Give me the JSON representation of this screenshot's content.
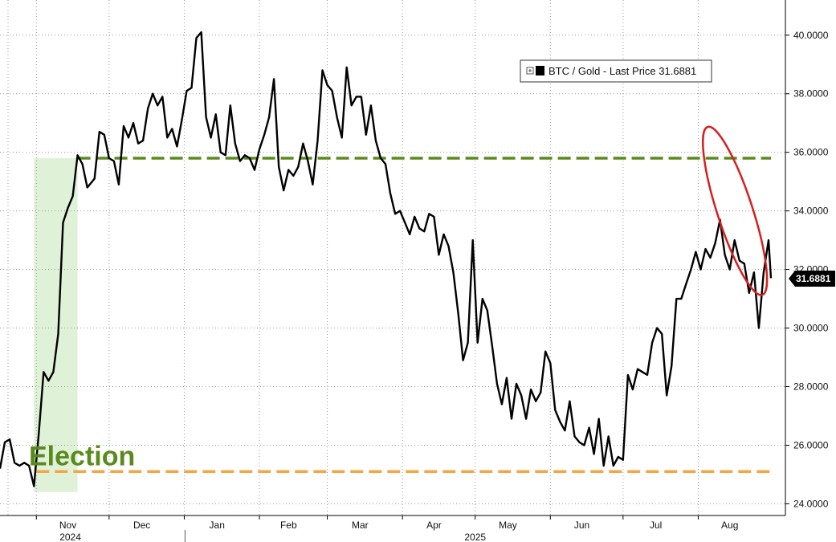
{
  "chart_data": {
    "type": "line",
    "title": "",
    "xlabel": "",
    "ylabel": "",
    "ylim": [
      23.6,
      41.2
    ],
    "y_axis_position": "right",
    "y_ticks": [
      "24.0000",
      "26.0000",
      "28.0000",
      "30.0000",
      "32.0000",
      "34.0000",
      "36.0000",
      "38.0000",
      "40.0000"
    ],
    "x_months": [
      {
        "label": "Nov",
        "date": "2024-11-01"
      },
      {
        "label": "Dec",
        "date": "2024-12-01"
      },
      {
        "label": "Jan",
        "date": "2025-01-01"
      },
      {
        "label": "Feb",
        "date": "2025-02-01"
      },
      {
        "label": "Mar",
        "date": "2025-03-01"
      },
      {
        "label": "Apr",
        "date": "2025-04-01"
      },
      {
        "label": "May",
        "date": "2025-05-01"
      },
      {
        "label": "Jun",
        "date": "2025-06-01"
      },
      {
        "label": "Jul",
        "date": "2025-07-01"
      },
      {
        "label": "Aug",
        "date": "2025-08-01"
      }
    ],
    "x_years": [
      {
        "label": "2024",
        "date": "2024-11-15"
      },
      {
        "label": "2025",
        "date": "2025-05-01"
      }
    ],
    "x_start": "2024-10-17",
    "x_end": "2025-08-31",
    "grid": true,
    "legend": {
      "position": "top-right",
      "text": "BTC / Gold - Last Price 31.6881"
    },
    "series": [
      {
        "name": "BTC / Gold",
        "color": "#000000",
        "last_value": "31.6881",
        "points": [
          [
            "2024-10-17",
            25.2
          ],
          [
            "2024-10-19",
            26.1
          ],
          [
            "2024-10-21",
            26.2
          ],
          [
            "2024-10-23",
            25.4
          ],
          [
            "2024-10-25",
            25.3
          ],
          [
            "2024-10-27",
            25.4
          ],
          [
            "2024-10-29",
            25.3
          ],
          [
            "2024-10-31",
            24.6
          ],
          [
            "2024-11-02",
            26.4
          ],
          [
            "2024-11-04",
            28.5
          ],
          [
            "2024-11-06",
            28.2
          ],
          [
            "2024-11-08",
            28.5
          ],
          [
            "2024-11-10",
            29.8
          ],
          [
            "2024-11-12",
            33.6
          ],
          [
            "2024-11-14",
            34.1
          ],
          [
            "2024-11-16",
            34.5
          ],
          [
            "2024-11-18",
            35.9
          ],
          [
            "2024-11-20",
            35.6
          ],
          [
            "2024-11-22",
            34.8
          ],
          [
            "2024-11-25",
            35.1
          ],
          [
            "2024-11-27",
            36.7
          ],
          [
            "2024-11-29",
            36.6
          ],
          [
            "2024-12-01",
            35.8
          ],
          [
            "2024-12-03",
            35.7
          ],
          [
            "2024-12-05",
            34.9
          ],
          [
            "2024-12-07",
            36.9
          ],
          [
            "2024-12-09",
            36.5
          ],
          [
            "2024-12-11",
            37.0
          ],
          [
            "2024-12-13",
            36.3
          ],
          [
            "2024-12-15",
            36.4
          ],
          [
            "2024-12-17",
            37.5
          ],
          [
            "2024-12-19",
            38.0
          ],
          [
            "2024-12-21",
            37.6
          ],
          [
            "2024-12-23",
            37.9
          ],
          [
            "2024-12-25",
            36.5
          ],
          [
            "2024-12-27",
            36.8
          ],
          [
            "2024-12-29",
            36.2
          ],
          [
            "2024-12-31",
            37.1
          ],
          [
            "2025-01-02",
            38.1
          ],
          [
            "2025-01-04",
            38.2
          ],
          [
            "2025-01-06",
            39.9
          ],
          [
            "2025-01-08",
            40.1
          ],
          [
            "2025-01-10",
            37.2
          ],
          [
            "2025-01-12",
            36.5
          ],
          [
            "2025-01-14",
            37.3
          ],
          [
            "2025-01-16",
            36.0
          ],
          [
            "2025-01-18",
            35.9
          ],
          [
            "2025-01-20",
            37.6
          ],
          [
            "2025-01-22",
            36.3
          ],
          [
            "2025-01-24",
            35.7
          ],
          [
            "2025-01-26",
            35.9
          ],
          [
            "2025-01-28",
            35.8
          ],
          [
            "2025-01-30",
            35.4
          ],
          [
            "2025-02-01",
            36.1
          ],
          [
            "2025-02-03",
            36.6
          ],
          [
            "2025-02-05",
            37.2
          ],
          [
            "2025-02-07",
            38.5
          ],
          [
            "2025-02-09",
            35.5
          ],
          [
            "2025-02-11",
            34.7
          ],
          [
            "2025-02-13",
            35.4
          ],
          [
            "2025-02-15",
            35.2
          ],
          [
            "2025-02-17",
            35.5
          ],
          [
            "2025-02-19",
            36.3
          ],
          [
            "2025-02-21",
            35.7
          ],
          [
            "2025-02-23",
            34.9
          ],
          [
            "2025-02-25",
            36.4
          ],
          [
            "2025-02-27",
            38.8
          ],
          [
            "2025-03-01",
            38.3
          ],
          [
            "2025-03-03",
            38.1
          ],
          [
            "2025-03-05",
            37.2
          ],
          [
            "2025-03-07",
            36.5
          ],
          [
            "2025-03-09",
            38.9
          ],
          [
            "2025-03-11",
            37.6
          ],
          [
            "2025-03-13",
            37.9
          ],
          [
            "2025-03-15",
            37.9
          ],
          [
            "2025-03-17",
            36.6
          ],
          [
            "2025-03-19",
            37.6
          ],
          [
            "2025-03-21",
            36.4
          ],
          [
            "2025-03-23",
            35.8
          ],
          [
            "2025-03-25",
            35.6
          ],
          [
            "2025-03-27",
            34.6
          ],
          [
            "2025-03-29",
            33.9
          ],
          [
            "2025-03-31",
            34.0
          ],
          [
            "2025-04-02",
            33.6
          ],
          [
            "2025-04-04",
            33.2
          ],
          [
            "2025-04-06",
            33.8
          ],
          [
            "2025-04-08",
            33.4
          ],
          [
            "2025-04-10",
            33.3
          ],
          [
            "2025-04-12",
            33.9
          ],
          [
            "2025-04-14",
            33.8
          ],
          [
            "2025-04-16",
            32.5
          ],
          [
            "2025-04-18",
            33.2
          ],
          [
            "2025-04-20",
            32.8
          ],
          [
            "2025-04-22",
            31.9
          ],
          [
            "2025-04-24",
            30.5
          ],
          [
            "2025-04-26",
            28.9
          ],
          [
            "2025-04-28",
            29.5
          ],
          [
            "2025-04-30",
            33.0
          ],
          [
            "2025-05-02",
            29.5
          ],
          [
            "2025-05-04",
            31.0
          ],
          [
            "2025-05-06",
            30.6
          ],
          [
            "2025-05-08",
            29.4
          ],
          [
            "2025-05-10",
            28.1
          ],
          [
            "2025-05-12",
            27.4
          ],
          [
            "2025-05-14",
            28.3
          ],
          [
            "2025-05-16",
            26.9
          ],
          [
            "2025-05-18",
            28.1
          ],
          [
            "2025-05-20",
            27.7
          ],
          [
            "2025-05-22",
            26.9
          ],
          [
            "2025-05-24",
            27.9
          ],
          [
            "2025-05-26",
            27.5
          ],
          [
            "2025-05-28",
            27.8
          ],
          [
            "2025-05-30",
            29.2
          ],
          [
            "2025-06-01",
            28.8
          ],
          [
            "2025-06-03",
            27.2
          ],
          [
            "2025-06-05",
            26.8
          ],
          [
            "2025-06-07",
            26.5
          ],
          [
            "2025-06-09",
            27.5
          ],
          [
            "2025-06-11",
            26.3
          ],
          [
            "2025-06-13",
            26.1
          ],
          [
            "2025-06-15",
            26.0
          ],
          [
            "2025-06-17",
            26.6
          ],
          [
            "2025-06-19",
            25.7
          ],
          [
            "2025-06-21",
            26.9
          ],
          [
            "2025-06-23",
            25.3
          ],
          [
            "2025-06-25",
            26.3
          ],
          [
            "2025-06-27",
            25.3
          ],
          [
            "2025-06-29",
            25.6
          ],
          [
            "2025-07-01",
            25.5
          ],
          [
            "2025-07-03",
            28.4
          ],
          [
            "2025-07-05",
            27.9
          ],
          [
            "2025-07-07",
            28.6
          ],
          [
            "2025-07-09",
            28.5
          ],
          [
            "2025-07-11",
            28.4
          ],
          [
            "2025-07-13",
            29.5
          ],
          [
            "2025-07-15",
            30.0
          ],
          [
            "2025-07-17",
            29.8
          ],
          [
            "2025-07-19",
            27.7
          ],
          [
            "2025-07-21",
            28.7
          ],
          [
            "2025-07-23",
            31.0
          ],
          [
            "2025-07-25",
            31.0
          ],
          [
            "2025-07-27",
            31.5
          ],
          [
            "2025-07-29",
            32.0
          ],
          [
            "2025-07-31",
            32.6
          ],
          [
            "2025-08-02",
            32.0
          ],
          [
            "2025-08-04",
            32.7
          ],
          [
            "2025-08-06",
            32.4
          ],
          [
            "2025-08-08",
            32.9
          ],
          [
            "2025-08-10",
            33.7
          ],
          [
            "2025-08-12",
            32.5
          ],
          [
            "2025-08-14",
            32.0
          ],
          [
            "2025-08-16",
            33.0
          ],
          [
            "2025-08-18",
            32.3
          ],
          [
            "2025-08-20",
            32.2
          ],
          [
            "2025-08-22",
            31.2
          ],
          [
            "2025-08-24",
            31.9
          ],
          [
            "2025-08-26",
            30.0
          ],
          [
            "2025-08-28",
            31.9
          ],
          [
            "2025-08-30",
            33.0
          ],
          [
            "2025-08-31",
            31.7
          ]
        ]
      }
    ],
    "reference_lines": [
      {
        "name": "pre-election-high",
        "value": 35.8,
        "from": "2024-11-18",
        "to": "2025-08-31",
        "color": "#5a8a1e",
        "style": "dashed"
      },
      {
        "name": "election-level",
        "value": 25.1,
        "from": "2024-11-01",
        "to": "2025-08-31",
        "color": "#f4a641",
        "style": "dashed"
      }
    ],
    "annotations": [
      {
        "text": "Election",
        "color": "#5a8a1e"
      }
    ],
    "highlight_band": {
      "from": "2024-10-31",
      "to": "2024-11-18",
      "color": "#dff2d8"
    },
    "highlight_ellipse": {
      "color": "#d61f1f"
    }
  }
}
